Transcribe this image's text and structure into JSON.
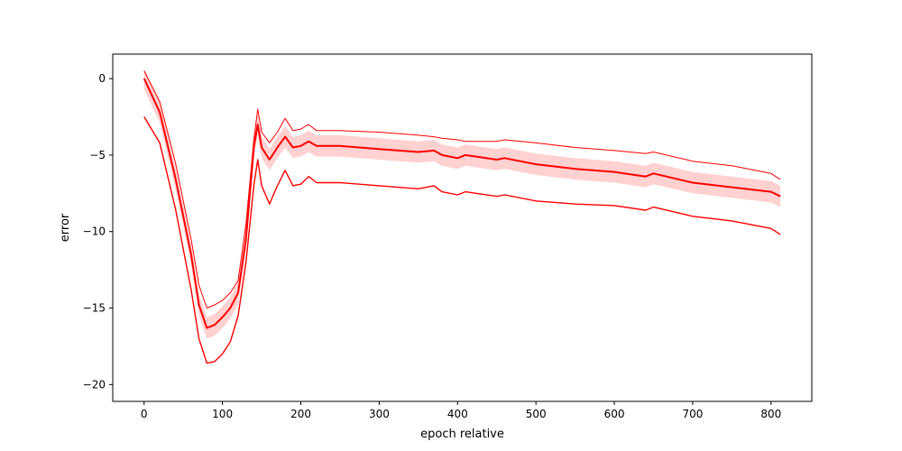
{
  "chart_data": {
    "type": "line",
    "title": "",
    "xlabel": "epoch relative",
    "ylabel": "error",
    "xlim": [
      -40,
      852
    ],
    "ylim": [
      -21.1,
      1.6
    ],
    "grid": false,
    "x_ticks": [
      0,
      100,
      200,
      300,
      400,
      500,
      600,
      700,
      800
    ],
    "y_ticks": [
      0,
      -5,
      -10,
      -15,
      -20
    ],
    "x_tick_labels": [
      "0",
      "100",
      "200",
      "300",
      "400",
      "500",
      "600",
      "700",
      "800"
    ],
    "y_tick_labels": [
      "0",
      "−5",
      "−10",
      "−15",
      "−20"
    ],
    "colors": {
      "line": "#ff0000",
      "band": "#ffb3b3"
    },
    "series": [
      {
        "role": "upper",
        "x": [
          0,
          20,
          40,
          60,
          70,
          80,
          90,
          100,
          110,
          120,
          130,
          140,
          145,
          150,
          160,
          170,
          180,
          190,
          200,
          210,
          220,
          250,
          300,
          350,
          370,
          380,
          400,
          410,
          450,
          460,
          500,
          550,
          600,
          640,
          650,
          700,
          750,
          800,
          812
        ],
        "y": [
          0.5,
          -1.5,
          -5.5,
          -10.5,
          -13.5,
          -15.0,
          -14.8,
          -14.5,
          -14.0,
          -13.2,
          -9.5,
          -4.0,
          -2.0,
          -3.5,
          -4.2,
          -3.5,
          -2.6,
          -3.4,
          -3.3,
          -3.0,
          -3.4,
          -3.4,
          -3.5,
          -3.7,
          -3.8,
          -3.9,
          -4.0,
          -4.1,
          -4.1,
          -4.0,
          -4.2,
          -4.5,
          -4.7,
          -4.9,
          -4.8,
          -5.4,
          -5.7,
          -6.2,
          -6.6
        ]
      },
      {
        "role": "mean",
        "x": [
          0,
          20,
          40,
          60,
          70,
          80,
          90,
          100,
          110,
          120,
          130,
          140,
          145,
          150,
          160,
          170,
          180,
          190,
          200,
          210,
          220,
          250,
          300,
          350,
          370,
          380,
          400,
          410,
          450,
          460,
          500,
          550,
          600,
          640,
          650,
          700,
          750,
          800,
          812
        ],
        "y": [
          0.0,
          -2.2,
          -6.5,
          -11.5,
          -14.8,
          -16.3,
          -16.1,
          -15.6,
          -15.0,
          -14.0,
          -10.5,
          -4.5,
          -3.0,
          -4.5,
          -5.3,
          -4.5,
          -3.8,
          -4.5,
          -4.4,
          -4.1,
          -4.4,
          -4.4,
          -4.6,
          -4.8,
          -4.7,
          -5.0,
          -5.2,
          -5.0,
          -5.3,
          -5.2,
          -5.6,
          -5.9,
          -6.1,
          -6.4,
          -6.2,
          -6.8,
          -7.1,
          -7.4,
          -7.7
        ]
      },
      {
        "role": "lower",
        "x": [
          0,
          20,
          40,
          60,
          70,
          80,
          90,
          100,
          110,
          120,
          130,
          140,
          145,
          150,
          160,
          170,
          180,
          190,
          200,
          210,
          220,
          250,
          300,
          350,
          370,
          380,
          400,
          410,
          450,
          460,
          500,
          550,
          600,
          640,
          650,
          700,
          750,
          800,
          812
        ],
        "y": [
          -2.5,
          -4.2,
          -8.5,
          -13.8,
          -17.0,
          -18.6,
          -18.5,
          -18.0,
          -17.2,
          -15.5,
          -12.0,
          -7.0,
          -5.3,
          -7.0,
          -8.2,
          -7.0,
          -6.0,
          -7.0,
          -6.9,
          -6.4,
          -6.8,
          -6.8,
          -7.0,
          -7.2,
          -7.0,
          -7.4,
          -7.6,
          -7.4,
          -7.7,
          -7.6,
          -8.0,
          -8.2,
          -8.3,
          -8.6,
          -8.4,
          -9.0,
          -9.3,
          -9.8,
          -10.2
        ]
      }
    ]
  }
}
